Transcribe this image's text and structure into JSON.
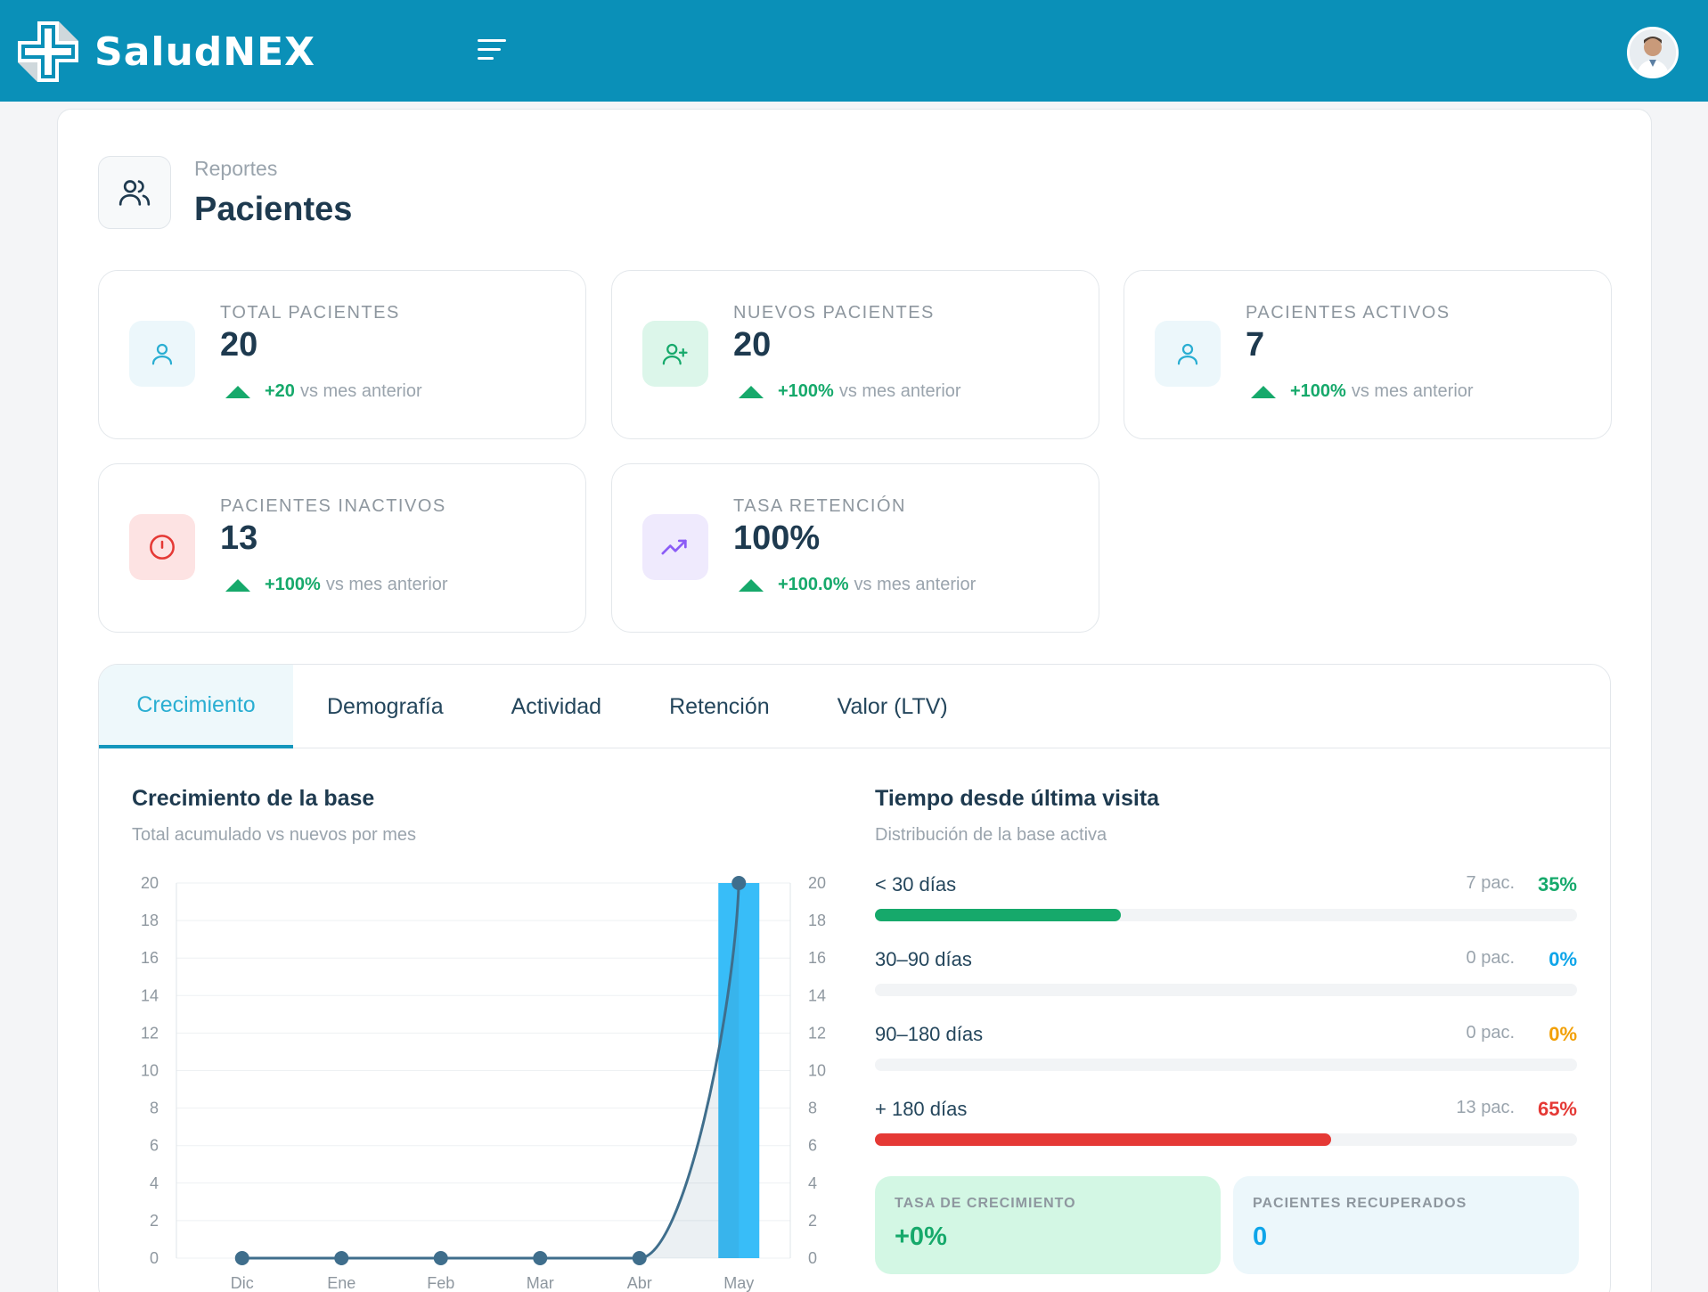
{
  "app": {
    "name": "SaludNEX",
    "colors": {
      "topbar": "#0a90b8",
      "accent": "#2aaed2",
      "success": "#16a96b",
      "danger": "#e53935",
      "warning": "#f2a007",
      "info": "#0ea5e9"
    }
  },
  "header": {
    "menu_icon": "hamburger-menu-icon",
    "avatar_icon": "user-avatar"
  },
  "page": {
    "breadcrumb": "Reportes",
    "title": "Pacientes",
    "icon": "users-icon"
  },
  "stats": [
    {
      "label": "TOTAL PACIENTES",
      "value": "20",
      "delta": "+20",
      "delta_suffix": "vs mes anterior",
      "icon": "user-icon",
      "icon_bg": "#ecf7fb",
      "icon_color": "#2aaed2"
    },
    {
      "label": "NUEVOS PACIENTES",
      "value": "20",
      "delta": "+100%",
      "delta_suffix": "vs mes anterior",
      "icon": "user-plus-icon",
      "icon_bg": "#dcf6ea",
      "icon_color": "#16a96b"
    },
    {
      "label": "PACIENTES ACTIVOS",
      "value": "7",
      "delta": "+100%",
      "delta_suffix": "vs mes anterior",
      "icon": "user-icon",
      "icon_bg": "#ecf7fb",
      "icon_color": "#2aaed2"
    },
    {
      "label": "PACIENTES INACTIVOS",
      "value": "13",
      "delta": "+100%",
      "delta_suffix": "vs mes anterior",
      "icon": "alert-circle-icon",
      "icon_bg": "#fde3e3",
      "icon_color": "#e53935"
    },
    {
      "label": "TASA RETENCIÓN",
      "value": "100%",
      "delta": "+100.0%",
      "delta_suffix": "vs mes anterior",
      "icon": "trending-up-icon",
      "icon_bg": "#efeafd",
      "icon_color": "#8b5cf6"
    }
  ],
  "tabs": [
    {
      "label": "Crecimiento",
      "active": true
    },
    {
      "label": "Demografía",
      "active": false
    },
    {
      "label": "Actividad",
      "active": false
    },
    {
      "label": "Retención",
      "active": false
    },
    {
      "label": "Valor (LTV)",
      "active": false
    }
  ],
  "growth": {
    "title": "Crecimiento de la base",
    "subtitle": "Total acumulado vs nuevos por mes"
  },
  "chart_data": {
    "type": "bar",
    "title": "Crecimiento de la base",
    "subtitle": "Total acumulado vs nuevos por mes",
    "categories": [
      "Dic",
      "Ene",
      "Feb",
      "Mar",
      "Abr",
      "May"
    ],
    "series": [
      {
        "type": "bar",
        "values": [
          0,
          0,
          0,
          0,
          0,
          20
        ],
        "color": "#38bdf8"
      },
      {
        "type": "area-line",
        "values": [
          0,
          0,
          0,
          0,
          0,
          20
        ],
        "color": "#3f6e8c"
      }
    ],
    "ylim": [
      0,
      20
    ],
    "yticks": [
      0,
      2,
      4,
      6,
      8,
      10,
      12,
      14,
      16,
      18,
      20
    ],
    "y2ticks": [
      0,
      2,
      4,
      6,
      8,
      10,
      12,
      14,
      16,
      18,
      20
    ],
    "grid": true
  },
  "distribution": {
    "title": "Tiempo desde última visita",
    "subtitle": "Distribución de la base activa",
    "rows": [
      {
        "label": "< 30 días",
        "count": "7 pac.",
        "pct_label": "35%",
        "fraction": 0.35,
        "color": "#16a96b"
      },
      {
        "label": "30–90 días",
        "count": "0 pac.",
        "pct_label": "0%",
        "fraction": 0,
        "color": "#0ea5e9"
      },
      {
        "label": "90–180 días",
        "count": "0 pac.",
        "pct_label": "0%",
        "fraction": 0,
        "color": "#f2a007"
      },
      {
        "label": "+ 180 días",
        "count": "13 pac.",
        "pct_label": "65%",
        "fraction": 0.65,
        "color": "#e53935"
      }
    ]
  },
  "mini_cards": [
    {
      "label": "TASA DE CRECIMIENTO",
      "value": "+0%",
      "bg": "#d3f7e4",
      "color": "#16a96b"
    },
    {
      "label": "PACIENTES RECUPERADOS",
      "value": "0",
      "bg": "#ecf7fb",
      "color": "#0ea5e9"
    }
  ]
}
